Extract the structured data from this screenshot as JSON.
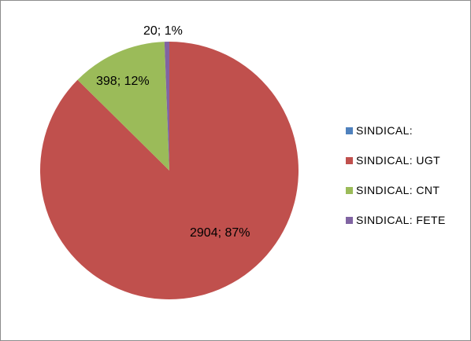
{
  "chart_data": {
    "type": "pie",
    "title": "",
    "categories": [
      "SINDICAL:",
      "SINDICAL: UGT",
      "SINDICAL: CNT",
      "SINDICAL: FETE"
    ],
    "values": [
      0,
      2904,
      398,
      20
    ],
    "percent_labels": [
      "",
      "87%",
      "12%",
      "1%"
    ],
    "data_labels": [
      "",
      "2904; 87%",
      "398; 12%",
      "20; 1%"
    ],
    "colors": [
      "#4f81bd",
      "#c0504d",
      "#9bbb59",
      "#8064a2"
    ],
    "legend_position": "right",
    "start_angle": "12 o'clock",
    "direction": "clockwise"
  }
}
